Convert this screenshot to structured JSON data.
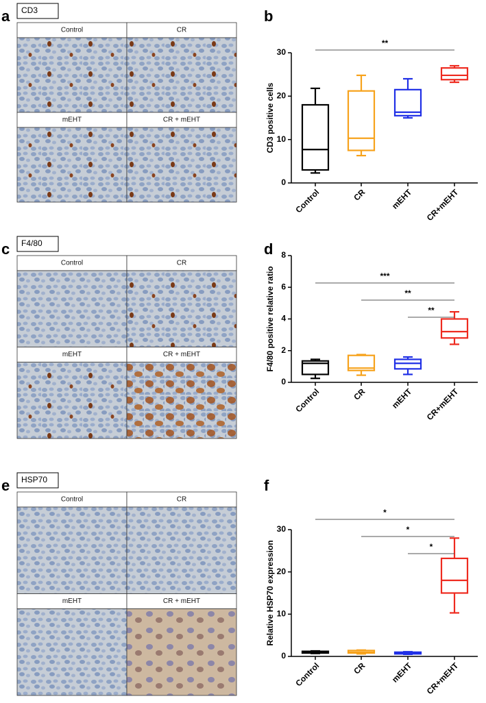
{
  "image_panels": [
    {
      "letter": "a",
      "marker": "CD3",
      "labels": [
        "Control",
        "CR",
        "mEHT",
        "CR + mEHT"
      ]
    },
    {
      "letter": "c",
      "marker": "F4/80",
      "labels": [
        "Control",
        "CR",
        "mEHT",
        "CR + mEHT"
      ]
    },
    {
      "letter": "e",
      "marker": "HSP70",
      "labels": [
        "Control",
        "CR",
        "mEHT",
        "CR + mEHT"
      ]
    }
  ],
  "chart_data": [
    {
      "type": "box",
      "panel_label": "b",
      "y_label": "CD3 positive cells",
      "categories": [
        "Control",
        "CR",
        "mEHT",
        "CR+mEHT"
      ],
      "boxes": [
        {
          "min": 2.3,
          "q1": 3,
          "median": 7.7,
          "q3": 18,
          "max": 21.8,
          "color": "#000000"
        },
        {
          "min": 6.3,
          "q1": 7.5,
          "median": 10.3,
          "q3": 21.2,
          "max": 24.8,
          "color": "#f7a21b"
        },
        {
          "min": 15,
          "q1": 15.5,
          "median": 16.3,
          "q3": 21.5,
          "max": 24,
          "color": "#1f2fe6"
        },
        {
          "min": 23.2,
          "q1": 23.8,
          "median": 24.8,
          "q3": 26.5,
          "max": 27,
          "color": "#ee2a1f"
        }
      ],
      "ylim": [
        0,
        30
      ],
      "yticks": [
        0,
        10,
        20,
        30
      ],
      "annotations": [
        {
          "span": [
            "Control",
            "CR+mEHT"
          ],
          "label": "**"
        }
      ]
    },
    {
      "type": "box",
      "panel_label": "d",
      "y_label": "F4/80 positive relative ratio",
      "categories": [
        "Control",
        "CR",
        "mEHT",
        "CR+mEHT"
      ],
      "boxes": [
        {
          "min": 0.25,
          "q1": 0.5,
          "median": 1.2,
          "q3": 1.35,
          "max": 1.45,
          "color": "#000000"
        },
        {
          "min": 0.45,
          "q1": 0.75,
          "median": 0.9,
          "q3": 1.7,
          "max": 1.75,
          "color": "#f7a21b"
        },
        {
          "min": 0.5,
          "q1": 0.85,
          "median": 1.2,
          "q3": 1.45,
          "max": 1.6,
          "color": "#1f2fe6"
        },
        {
          "min": 2.4,
          "q1": 2.8,
          "median": 3.2,
          "q3": 4.0,
          "max": 4.45,
          "color": "#ee2a1f"
        }
      ],
      "ylim": [
        0,
        8
      ],
      "yticks": [
        0,
        2,
        4,
        6,
        8
      ],
      "annotations": [
        {
          "span": [
            "Control",
            "CR+mEHT"
          ],
          "label": "***"
        },
        {
          "span": [
            "CR",
            "CR+mEHT"
          ],
          "label": "**"
        },
        {
          "span": [
            "mEHT",
            "CR+mEHT"
          ],
          "label": "**"
        }
      ]
    },
    {
      "type": "box",
      "panel_label": "f",
      "y_label": "Relative HSP70 expression",
      "categories": [
        "Control",
        "CR",
        "mEHT",
        "CR+mEHT"
      ],
      "boxes": [
        {
          "min": 0.7,
          "q1": 0.8,
          "median": 1.0,
          "q3": 1.2,
          "max": 1.3,
          "color": "#000000"
        },
        {
          "min": 0.6,
          "q1": 0.8,
          "median": 1.0,
          "q3": 1.4,
          "max": 1.5,
          "color": "#f7a21b"
        },
        {
          "min": 0.5,
          "q1": 0.6,
          "median": 0.8,
          "q3": 1.0,
          "max": 1.1,
          "color": "#1f2fe6"
        },
        {
          "min": 10.3,
          "q1": 15,
          "median": 18,
          "q3": 23.2,
          "max": 28,
          "color": "#ee2a1f"
        }
      ],
      "ylim": [
        0,
        30
      ],
      "yticks": [
        0,
        10,
        20,
        30
      ],
      "annotations": [
        {
          "span": [
            "Control",
            "CR+mEHT"
          ],
          "label": "*"
        },
        {
          "span": [
            "CR",
            "CR+mEHT"
          ],
          "label": "*"
        },
        {
          "span": [
            "mEHT",
            "CR+mEHT"
          ],
          "label": "*"
        }
      ]
    }
  ]
}
